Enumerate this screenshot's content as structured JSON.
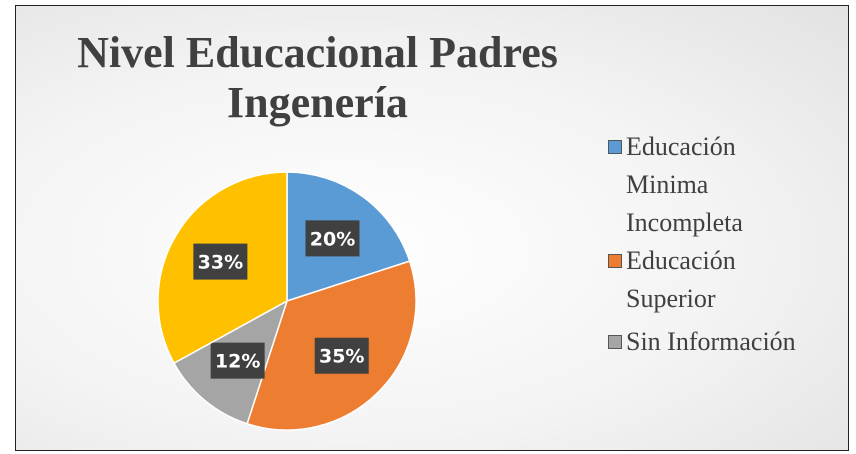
{
  "chart_data": {
    "type": "pie",
    "title": "Nivel Educacional Padres Ingenería",
    "categories": [
      "Educación Minima Incompleta",
      "Educación Superior",
      "Sin Información",
      null
    ],
    "values": [
      20,
      35,
      12,
      33
    ],
    "value_labels": [
      "20%",
      "35%",
      "12%",
      "33%"
    ],
    "colors": [
      "#5b9bd5",
      "#ed7d31",
      "#a5a5a5",
      "#ffc000"
    ],
    "legend": "right"
  }
}
